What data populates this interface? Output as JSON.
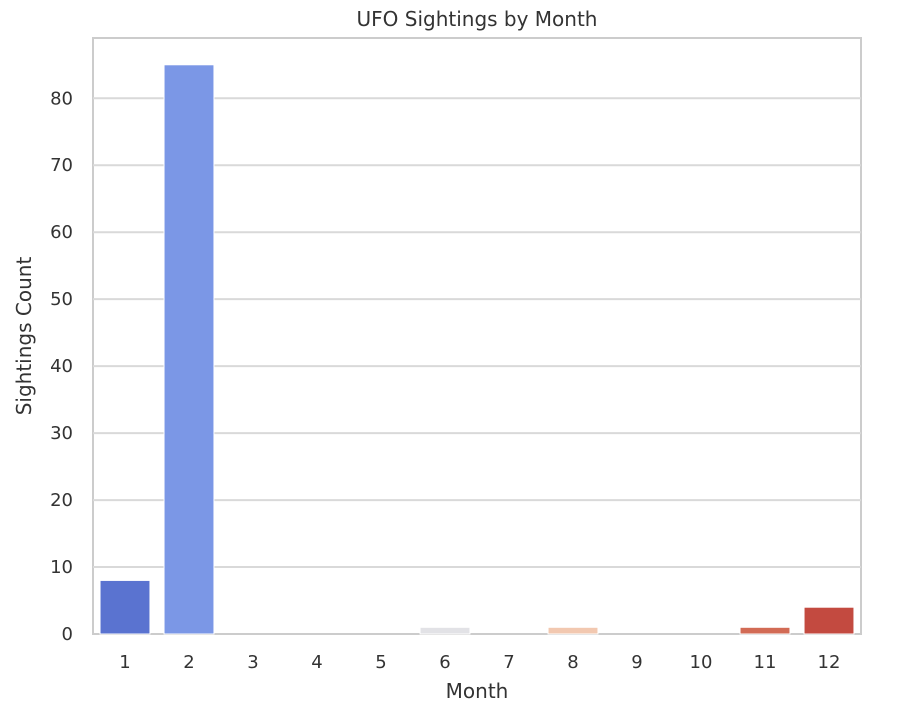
{
  "chart_data": {
    "type": "bar",
    "title": "UFO Sightings by Month",
    "xlabel": "Month",
    "ylabel": "Sightings Count",
    "categories": [
      "1",
      "2",
      "3",
      "4",
      "5",
      "6",
      "7",
      "8",
      "9",
      "10",
      "11",
      "12"
    ],
    "values": [
      8,
      85,
      0,
      0,
      0,
      1,
      0,
      1,
      0,
      0,
      1,
      4
    ],
    "colors": [
      "#5a73d0",
      "#7b97e6",
      "#b0c6f0",
      "#c9d6ef",
      "#dadde6",
      "#e2e2e6",
      "#ede0d6",
      "#f2c8b0",
      "#f0a98a",
      "#e58a6b",
      "#d26b55",
      "#c34a40"
    ],
    "ylim": [
      0,
      89
    ],
    "yticks": [
      0,
      10,
      20,
      30,
      40,
      50,
      60,
      70,
      80
    ],
    "grid": true,
    "legend": "none"
  }
}
